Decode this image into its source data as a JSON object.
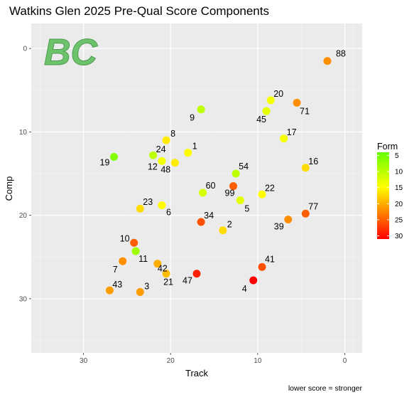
{
  "chart_data": {
    "type": "scatter",
    "title": "Watkins Glen 2025 Pre-Qual Score Components",
    "xlabel": "Track",
    "ylabel": "Comp",
    "caption": "lower score = stronger",
    "x_reversed": true,
    "y_reversed": true,
    "xlim": [
      36,
      -2
    ],
    "ylim": [
      -3,
      36.5
    ],
    "x_ticks": [
      30,
      20,
      10,
      0
    ],
    "y_ticks": [
      0,
      10,
      20,
      30
    ],
    "grid": true,
    "legend": {
      "title": "Form",
      "placement": "right",
      "ticks": [
        5,
        10,
        15,
        20,
        25,
        30
      ],
      "range": [
        4,
        31
      ],
      "colors": [
        "#66ff00",
        "#ffff00",
        "#ff0000"
      ]
    },
    "logo_text": "BC",
    "points": [
      {
        "label": "88",
        "x": 2.0,
        "y": 1.5,
        "form": 22
      },
      {
        "label": "20",
        "x": 8.5,
        "y": 6.2,
        "form": 14
      },
      {
        "label": "71",
        "x": 5.5,
        "y": 6.5,
        "form": 22
      },
      {
        "label": "45",
        "x": 9.0,
        "y": 7.5,
        "form": 13
      },
      {
        "label": "9",
        "x": 16.5,
        "y": 7.3,
        "form": 10
      },
      {
        "label": "17",
        "x": 7.0,
        "y": 10.8,
        "form": 14
      },
      {
        "label": "8",
        "x": 20.5,
        "y": 11.0,
        "form": 16
      },
      {
        "label": "1",
        "x": 18.0,
        "y": 12.5,
        "form": 15
      },
      {
        "label": "24",
        "x": 22.0,
        "y": 12.8,
        "form": 10
      },
      {
        "label": "19",
        "x": 26.5,
        "y": 13.0,
        "form": 6
      },
      {
        "label": "12",
        "x": 21.0,
        "y": 13.5,
        "form": 14
      },
      {
        "label": "48",
        "x": 19.5,
        "y": 13.7,
        "form": 16
      },
      {
        "label": "16",
        "x": 4.5,
        "y": 14.3,
        "form": 17
      },
      {
        "label": "54",
        "x": 12.5,
        "y": 15.0,
        "form": 10
      },
      {
        "label": "60",
        "x": 16.3,
        "y": 17.3,
        "form": 12
      },
      {
        "label": "99",
        "x": 12.8,
        "y": 16.5,
        "form": 25
      },
      {
        "label": "22",
        "x": 9.5,
        "y": 17.5,
        "form": 15
      },
      {
        "label": "5",
        "x": 12.0,
        "y": 18.2,
        "form": 13
      },
      {
        "label": "23",
        "x": 23.5,
        "y": 19.2,
        "form": 17
      },
      {
        "label": "6",
        "x": 21.0,
        "y": 18.8,
        "form": 15
      },
      {
        "label": "77",
        "x": 4.5,
        "y": 19.8,
        "form": 25
      },
      {
        "label": "39",
        "x": 6.5,
        "y": 20.5,
        "form": 22
      },
      {
        "label": "34",
        "x": 16.5,
        "y": 20.8,
        "form": 26
      },
      {
        "label": "2",
        "x": 14.0,
        "y": 21.8,
        "form": 17
      },
      {
        "label": "10",
        "x": 24.2,
        "y": 23.3,
        "form": 25
      },
      {
        "label": "11",
        "x": 24.0,
        "y": 24.3,
        "form": 8
      },
      {
        "label": "7",
        "x": 25.5,
        "y": 25.5,
        "form": 22
      },
      {
        "label": "42",
        "x": 21.5,
        "y": 25.8,
        "form": 20
      },
      {
        "label": "41",
        "x": 9.5,
        "y": 26.2,
        "form": 26
      },
      {
        "label": "47",
        "x": 17.0,
        "y": 27.0,
        "form": 29
      },
      {
        "label": "21",
        "x": 20.5,
        "y": 27.0,
        "form": 19
      },
      {
        "label": "4",
        "x": 10.5,
        "y": 27.8,
        "form": 31
      },
      {
        "label": "43",
        "x": 27.0,
        "y": 29.0,
        "form": 21
      },
      {
        "label": "3",
        "x": 23.5,
        "y": 29.2,
        "form": 21
      }
    ]
  }
}
